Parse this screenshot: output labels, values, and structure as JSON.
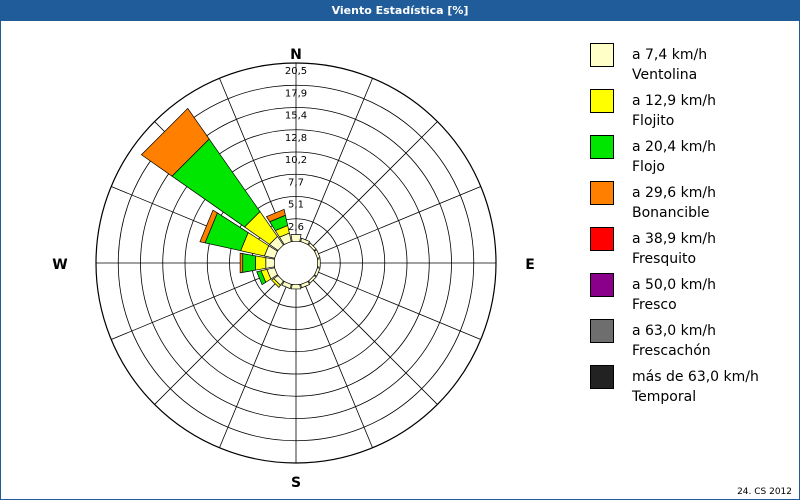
{
  "window": {
    "title": "Viento Estadística [%]"
  },
  "footer": "24. CS 2012",
  "chart_data": {
    "type": "wind-rose",
    "title": "Viento Estadística [%]",
    "directions": [
      "N",
      "NNE",
      "NE",
      "ENE",
      "E",
      "ESE",
      "SE",
      "SSE",
      "S",
      "SSW",
      "SW",
      "WSW",
      "W",
      "WNW",
      "NW",
      "NNW"
    ],
    "compass_labels": {
      "N": "N",
      "E": "E",
      "S": "S",
      "W": "W"
    },
    "radial_ticks": [
      "2,6",
      "5,1",
      "7,7",
      "10,2",
      "12,8",
      "15,4",
      "17,9",
      "20,5"
    ],
    "radial_max": 20.5,
    "legend": [
      {
        "label": "a 7,4 km/h",
        "sub": "Ventolina",
        "color": "#ffffc8"
      },
      {
        "label": "a 12,9 km/h",
        "sub": "Flojito",
        "color": "#ffff00"
      },
      {
        "label": "a 20,4 km/h",
        "sub": "Flojo",
        "color": "#00e600"
      },
      {
        "label": "a 29,6 km/h",
        "sub": "Bonancible",
        "color": "#ff8000"
      },
      {
        "label": "a 38,9 km/h",
        "sub": "Fresquito",
        "color": "#ff0000"
      },
      {
        "label": "a 50,0 km/h",
        "sub": "Fresco",
        "color": "#8b008b"
      },
      {
        "label": "a 63,0 km/h",
        "sub": "Frescachón",
        "color": "#6e6e6e"
      },
      {
        "label": "más de 63,0 km/h",
        "sub": "Temporal",
        "color": "#222222"
      }
    ],
    "series": [
      {
        "name": "a 7,4 km/h",
        "values": [
          0.8,
          0.4,
          0.3,
          0.3,
          0.3,
          0.3,
          0.3,
          0.4,
          0.5,
          0.5,
          0.6,
          0.9,
          1.0,
          1.2,
          1.2,
          1.0
        ]
      },
      {
        "name": "a 12,9 km/h",
        "values": [
          0,
          0,
          0,
          0,
          0,
          0,
          0,
          0,
          0,
          0,
          0.3,
          0.7,
          1.2,
          2.8,
          3.5,
          0.9
        ]
      },
      {
        "name": "a 20,4 km/h",
        "values": [
          0,
          0,
          0,
          0,
          0,
          0,
          0,
          0,
          0,
          0,
          0,
          0.5,
          1.5,
          4.2,
          10.2,
          1.2
        ]
      },
      {
        "name": "a 29,6 km/h",
        "values": [
          0,
          0,
          0,
          0,
          0,
          0,
          0,
          0,
          0,
          0,
          0,
          0,
          0.3,
          0.6,
          4.3,
          0.7
        ]
      },
      {
        "name": "a 38,9 km/h",
        "values": [
          0,
          0,
          0,
          0,
          0,
          0,
          0,
          0,
          0,
          0,
          0,
          0,
          0,
          0,
          0,
          0
        ]
      },
      {
        "name": "a 50,0 km/h",
        "values": [
          0,
          0,
          0,
          0,
          0,
          0,
          0,
          0,
          0,
          0,
          0,
          0,
          0,
          0,
          0,
          0
        ]
      },
      {
        "name": "a 63,0 km/h",
        "values": [
          0,
          0,
          0,
          0,
          0,
          0,
          0,
          0,
          0,
          0,
          0,
          0,
          0,
          0,
          0,
          0
        ]
      },
      {
        "name": "más de 63,0 km/h",
        "values": [
          0,
          0,
          0,
          0,
          0,
          0,
          0,
          0,
          0,
          0,
          0,
          0,
          0,
          0,
          0,
          0
        ]
      }
    ]
  }
}
